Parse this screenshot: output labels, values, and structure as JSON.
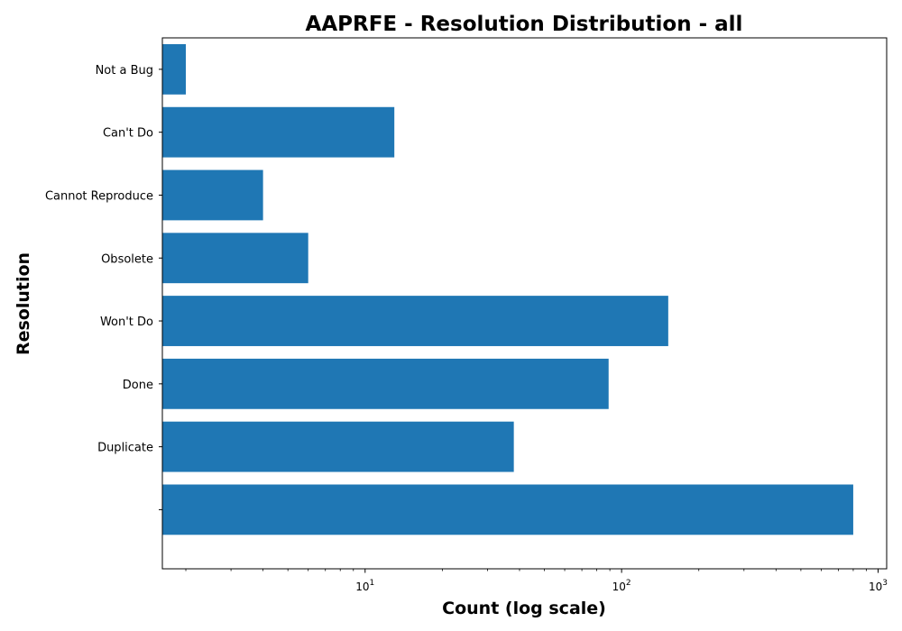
{
  "chart_data": {
    "type": "bar",
    "orientation": "horizontal",
    "title": "AAPRFE - Resolution Distribution - all",
    "xlabel": "Count (log scale)",
    "ylabel": "Resolution",
    "x_scale": "log",
    "xlim": [
      1.62,
      1080
    ],
    "x_ticks": [
      {
        "value": 10,
        "base": "10",
        "exp": "1"
      },
      {
        "value": 100,
        "base": "10",
        "exp": "2"
      },
      {
        "value": 1000,
        "base": "10",
        "exp": "3"
      }
    ],
    "categories": [
      "",
      "Duplicate",
      "Done",
      "Won't Do",
      "Obsolete",
      "Cannot Reproduce",
      "Can't Do",
      "Not a Bug"
    ],
    "values": [
      800,
      38,
      89,
      152,
      6,
      4,
      13,
      2
    ],
    "bar_color": "#1f77b4",
    "grid": false
  }
}
